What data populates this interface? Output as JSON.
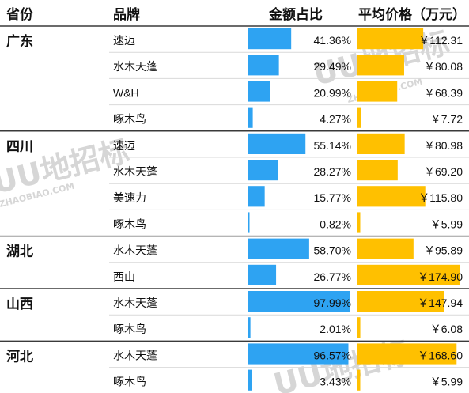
{
  "headers": {
    "province": "省份",
    "brand": "品牌",
    "share": "金额占比",
    "price": "平均价格（万元）"
  },
  "watermark": {
    "logo": "UU地招标",
    "domain": "ZHAOBIAO.COM"
  },
  "colors": {
    "share_bar": "#2ea3f2",
    "price_bar": "#ffc000",
    "divider": "#3a3a3a",
    "row_line": "#d9d9d9"
  },
  "chart_data": {
    "type": "table",
    "columns": [
      "省份",
      "品牌",
      "金额占比",
      "平均价格（万元）"
    ],
    "share_scale_max": 100,
    "price_scale_max": 174.9,
    "groups": [
      {
        "province": "广东",
        "rows": [
          {
            "brand": "速迈",
            "share": 41.36,
            "share_label": "41.36%",
            "price": 112.31,
            "price_label": "￥112.31"
          },
          {
            "brand": "水木天蓬",
            "share": 29.49,
            "share_label": "29.49%",
            "price": 80.08,
            "price_label": "￥80.08"
          },
          {
            "brand": "W&H",
            "share": 20.99,
            "share_label": "20.99%",
            "price": 68.39,
            "price_label": "￥68.39"
          },
          {
            "brand": "啄木鸟",
            "share": 4.27,
            "share_label": "4.27%",
            "price": 7.72,
            "price_label": "￥7.72"
          }
        ]
      },
      {
        "province": "四川",
        "rows": [
          {
            "brand": "速迈",
            "share": 55.14,
            "share_label": "55.14%",
            "price": 80.98,
            "price_label": "￥80.98"
          },
          {
            "brand": "水木天蓬",
            "share": 28.27,
            "share_label": "28.27%",
            "price": 69.2,
            "price_label": "￥69.20"
          },
          {
            "brand": "美速力",
            "share": 15.77,
            "share_label": "15.77%",
            "price": 115.8,
            "price_label": "￥115.80"
          },
          {
            "brand": "啄木鸟",
            "share": 0.82,
            "share_label": "0.82%",
            "price": 5.99,
            "price_label": "￥5.99"
          }
        ]
      },
      {
        "province": "湖北",
        "rows": [
          {
            "brand": "水木天蓬",
            "share": 58.7,
            "share_label": "58.70%",
            "price": 95.89,
            "price_label": "￥95.89"
          },
          {
            "brand": "西山",
            "share": 26.77,
            "share_label": "26.77%",
            "price": 174.9,
            "price_label": "￥174.90"
          }
        ]
      },
      {
        "province": "山西",
        "rows": [
          {
            "brand": "水木天蓬",
            "share": 97.99,
            "share_label": "97.99%",
            "price": 147.94,
            "price_label": "￥147.94"
          },
          {
            "brand": "啄木鸟",
            "share": 2.01,
            "share_label": "2.01%",
            "price": 6.08,
            "price_label": "￥6.08"
          }
        ]
      },
      {
        "province": "河北",
        "rows": [
          {
            "brand": "水木天蓬",
            "share": 96.57,
            "share_label": "96.57%",
            "price": 168.6,
            "price_label": "￥168.60"
          },
          {
            "brand": "啄木鸟",
            "share": 3.43,
            "share_label": "3.43%",
            "price": 5.99,
            "price_label": "￥5.99"
          }
        ]
      }
    ]
  }
}
